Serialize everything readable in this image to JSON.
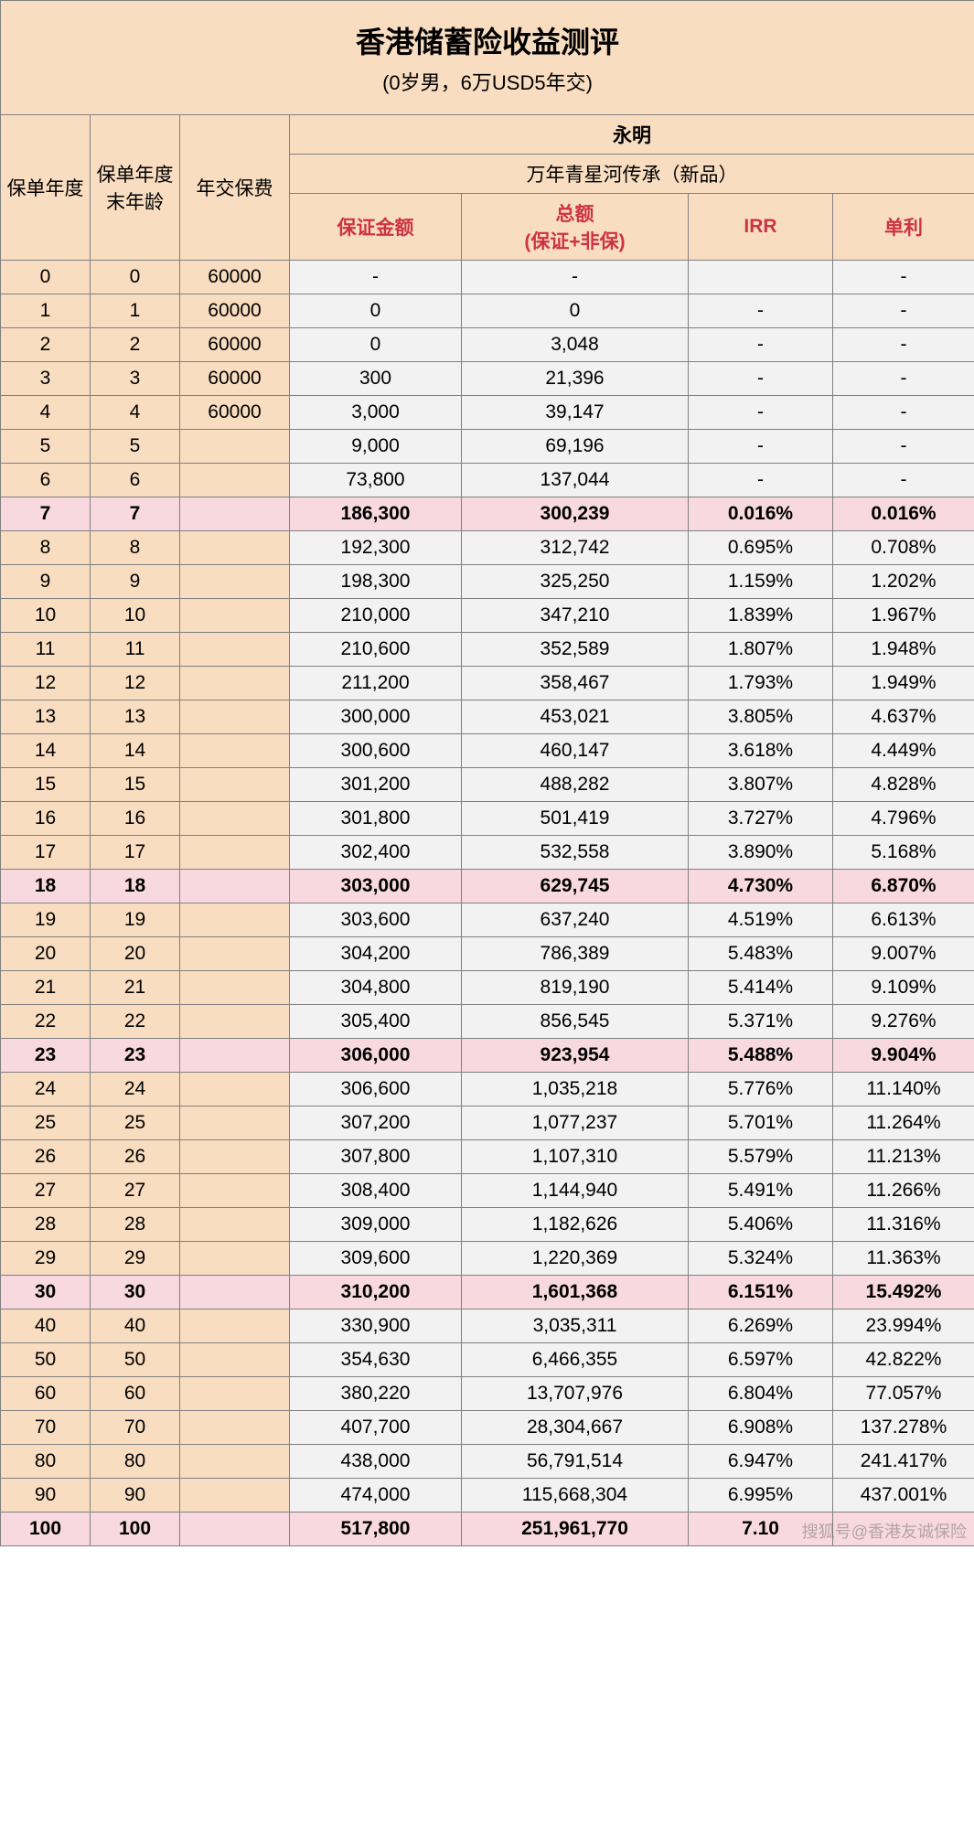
{
  "title": "香港储蓄险收益测评",
  "subtitle": "(0岁男，6万USD5年交)",
  "company": "永明",
  "product": "万年青星河传承（新品）",
  "watermark": "搜狐号@香港友诚保险",
  "headers": {
    "policyYear": "保单年度",
    "endAge": "保单年度末年龄",
    "annualPrem": "年交保费",
    "guaranteed": "保证金额",
    "total_l1": "总额",
    "total_l2": "(保证+非保)",
    "irr": "IRR",
    "simple": "单利"
  },
  "rows": [
    {
      "y": "0",
      "a": "0",
      "p": "60000",
      "g": "-",
      "t": "-",
      "i": "",
      "s": "-",
      "hl": false
    },
    {
      "y": "1",
      "a": "1",
      "p": "60000",
      "g": "0",
      "t": "0",
      "i": "-",
      "s": "-",
      "hl": false
    },
    {
      "y": "2",
      "a": "2",
      "p": "60000",
      "g": "0",
      "t": "3,048",
      "i": "-",
      "s": "-",
      "hl": false
    },
    {
      "y": "3",
      "a": "3",
      "p": "60000",
      "g": "300",
      "t": "21,396",
      "i": "-",
      "s": "-",
      "hl": false
    },
    {
      "y": "4",
      "a": "4",
      "p": "60000",
      "g": "3,000",
      "t": "39,147",
      "i": "-",
      "s": "-",
      "hl": false
    },
    {
      "y": "5",
      "a": "5",
      "p": "",
      "g": "9,000",
      "t": "69,196",
      "i": "-",
      "s": "-",
      "hl": false
    },
    {
      "y": "6",
      "a": "6",
      "p": "",
      "g": "73,800",
      "t": "137,044",
      "i": "-",
      "s": "-",
      "hl": false
    },
    {
      "y": "7",
      "a": "7",
      "p": "",
      "g": "186,300",
      "t": "300,239",
      "i": "0.016%",
      "s": "0.016%",
      "hl": true
    },
    {
      "y": "8",
      "a": "8",
      "p": "",
      "g": "192,300",
      "t": "312,742",
      "i": "0.695%",
      "s": "0.708%",
      "hl": false
    },
    {
      "y": "9",
      "a": "9",
      "p": "",
      "g": "198,300",
      "t": "325,250",
      "i": "1.159%",
      "s": "1.202%",
      "hl": false
    },
    {
      "y": "10",
      "a": "10",
      "p": "",
      "g": "210,000",
      "t": "347,210",
      "i": "1.839%",
      "s": "1.967%",
      "hl": false
    },
    {
      "y": "11",
      "a": "11",
      "p": "",
      "g": "210,600",
      "t": "352,589",
      "i": "1.807%",
      "s": "1.948%",
      "hl": false
    },
    {
      "y": "12",
      "a": "12",
      "p": "",
      "g": "211,200",
      "t": "358,467",
      "i": "1.793%",
      "s": "1.949%",
      "hl": false
    },
    {
      "y": "13",
      "a": "13",
      "p": "",
      "g": "300,000",
      "t": "453,021",
      "i": "3.805%",
      "s": "4.637%",
      "hl": false
    },
    {
      "y": "14",
      "a": "14",
      "p": "",
      "g": "300,600",
      "t": "460,147",
      "i": "3.618%",
      "s": "4.449%",
      "hl": false
    },
    {
      "y": "15",
      "a": "15",
      "p": "",
      "g": "301,200",
      "t": "488,282",
      "i": "3.807%",
      "s": "4.828%",
      "hl": false
    },
    {
      "y": "16",
      "a": "16",
      "p": "",
      "g": "301,800",
      "t": "501,419",
      "i": "3.727%",
      "s": "4.796%",
      "hl": false
    },
    {
      "y": "17",
      "a": "17",
      "p": "",
      "g": "302,400",
      "t": "532,558",
      "i": "3.890%",
      "s": "5.168%",
      "hl": false
    },
    {
      "y": "18",
      "a": "18",
      "p": "",
      "g": "303,000",
      "t": "629,745",
      "i": "4.730%",
      "s": "6.870%",
      "hl": true
    },
    {
      "y": "19",
      "a": "19",
      "p": "",
      "g": "303,600",
      "t": "637,240",
      "i": "4.519%",
      "s": "6.613%",
      "hl": false
    },
    {
      "y": "20",
      "a": "20",
      "p": "",
      "g": "304,200",
      "t": "786,389",
      "i": "5.483%",
      "s": "9.007%",
      "hl": false
    },
    {
      "y": "21",
      "a": "21",
      "p": "",
      "g": "304,800",
      "t": "819,190",
      "i": "5.414%",
      "s": "9.109%",
      "hl": false
    },
    {
      "y": "22",
      "a": "22",
      "p": "",
      "g": "305,400",
      "t": "856,545",
      "i": "5.371%",
      "s": "9.276%",
      "hl": false
    },
    {
      "y": "23",
      "a": "23",
      "p": "",
      "g": "306,000",
      "t": "923,954",
      "i": "5.488%",
      "s": "9.904%",
      "hl": true
    },
    {
      "y": "24",
      "a": "24",
      "p": "",
      "g": "306,600",
      "t": "1,035,218",
      "i": "5.776%",
      "s": "11.140%",
      "hl": false
    },
    {
      "y": "25",
      "a": "25",
      "p": "",
      "g": "307,200",
      "t": "1,077,237",
      "i": "5.701%",
      "s": "11.264%",
      "hl": false
    },
    {
      "y": "26",
      "a": "26",
      "p": "",
      "g": "307,800",
      "t": "1,107,310",
      "i": "5.579%",
      "s": "11.213%",
      "hl": false
    },
    {
      "y": "27",
      "a": "27",
      "p": "",
      "g": "308,400",
      "t": "1,144,940",
      "i": "5.491%",
      "s": "11.266%",
      "hl": false
    },
    {
      "y": "28",
      "a": "28",
      "p": "",
      "g": "309,000",
      "t": "1,182,626",
      "i": "5.406%",
      "s": "11.316%",
      "hl": false
    },
    {
      "y": "29",
      "a": "29",
      "p": "",
      "g": "309,600",
      "t": "1,220,369",
      "i": "5.324%",
      "s": "11.363%",
      "hl": false
    },
    {
      "y": "30",
      "a": "30",
      "p": "",
      "g": "310,200",
      "t": "1,601,368",
      "i": "6.151%",
      "s": "15.492%",
      "hl": true
    },
    {
      "y": "40",
      "a": "40",
      "p": "",
      "g": "330,900",
      "t": "3,035,311",
      "i": "6.269%",
      "s": "23.994%",
      "hl": false
    },
    {
      "y": "50",
      "a": "50",
      "p": "",
      "g": "354,630",
      "t": "6,466,355",
      "i": "6.597%",
      "s": "42.822%",
      "hl": false
    },
    {
      "y": "60",
      "a": "60",
      "p": "",
      "g": "380,220",
      "t": "13,707,976",
      "i": "6.804%",
      "s": "77.057%",
      "hl": false
    },
    {
      "y": "70",
      "a": "70",
      "p": "",
      "g": "407,700",
      "t": "28,304,667",
      "i": "6.908%",
      "s": "137.278%",
      "hl": false
    },
    {
      "y": "80",
      "a": "80",
      "p": "",
      "g": "438,000",
      "t": "56,791,514",
      "i": "6.947%",
      "s": "241.417%",
      "hl": false
    },
    {
      "y": "90",
      "a": "90",
      "p": "",
      "g": "474,000",
      "t": "115,668,304",
      "i": "6.995%",
      "s": "437.001%",
      "hl": false
    },
    {
      "y": "100",
      "a": "100",
      "p": "",
      "g": "517,800",
      "t": "251,961,770",
      "i": "7.10",
      "s": "",
      "hl": true
    }
  ]
}
